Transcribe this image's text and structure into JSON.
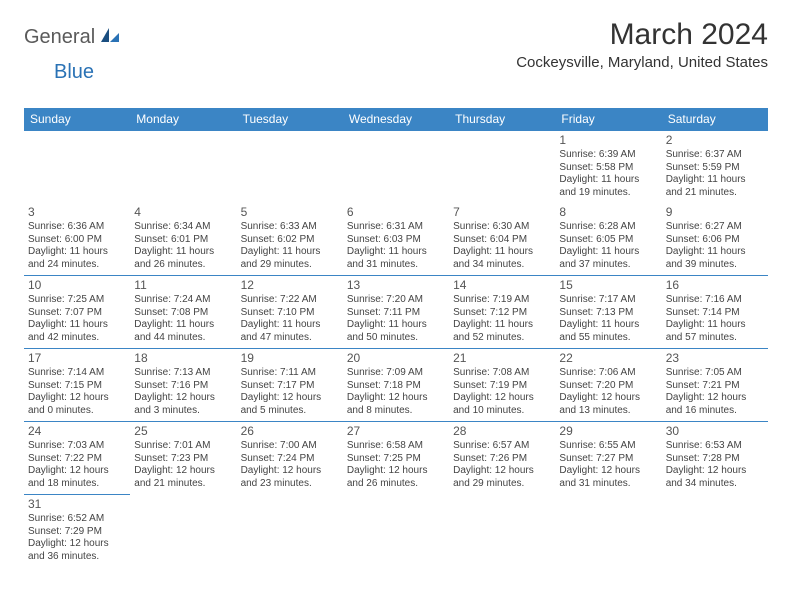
{
  "logo": {
    "text1": "General",
    "text2": "Blue"
  },
  "title": "March 2024",
  "location": "Cockeysville, Maryland, United States",
  "header_bg": "#3b85c5",
  "day_headers": [
    "Sunday",
    "Monday",
    "Tuesday",
    "Wednesday",
    "Thursday",
    "Friday",
    "Saturday"
  ],
  "weeks": [
    [
      null,
      null,
      null,
      null,
      null,
      {
        "n": "1",
        "sr": "Sunrise: 6:39 AM",
        "ss": "Sunset: 5:58 PM",
        "d1": "Daylight: 11 hours",
        "d2": "and 19 minutes."
      },
      {
        "n": "2",
        "sr": "Sunrise: 6:37 AM",
        "ss": "Sunset: 5:59 PM",
        "d1": "Daylight: 11 hours",
        "d2": "and 21 minutes."
      }
    ],
    [
      {
        "n": "3",
        "sr": "Sunrise: 6:36 AM",
        "ss": "Sunset: 6:00 PM",
        "d1": "Daylight: 11 hours",
        "d2": "and 24 minutes."
      },
      {
        "n": "4",
        "sr": "Sunrise: 6:34 AM",
        "ss": "Sunset: 6:01 PM",
        "d1": "Daylight: 11 hours",
        "d2": "and 26 minutes."
      },
      {
        "n": "5",
        "sr": "Sunrise: 6:33 AM",
        "ss": "Sunset: 6:02 PM",
        "d1": "Daylight: 11 hours",
        "d2": "and 29 minutes."
      },
      {
        "n": "6",
        "sr": "Sunrise: 6:31 AM",
        "ss": "Sunset: 6:03 PM",
        "d1": "Daylight: 11 hours",
        "d2": "and 31 minutes."
      },
      {
        "n": "7",
        "sr": "Sunrise: 6:30 AM",
        "ss": "Sunset: 6:04 PM",
        "d1": "Daylight: 11 hours",
        "d2": "and 34 minutes."
      },
      {
        "n": "8",
        "sr": "Sunrise: 6:28 AM",
        "ss": "Sunset: 6:05 PM",
        "d1": "Daylight: 11 hours",
        "d2": "and 37 minutes."
      },
      {
        "n": "9",
        "sr": "Sunrise: 6:27 AM",
        "ss": "Sunset: 6:06 PM",
        "d1": "Daylight: 11 hours",
        "d2": "and 39 minutes."
      }
    ],
    [
      {
        "n": "10",
        "sr": "Sunrise: 7:25 AM",
        "ss": "Sunset: 7:07 PM",
        "d1": "Daylight: 11 hours",
        "d2": "and 42 minutes."
      },
      {
        "n": "11",
        "sr": "Sunrise: 7:24 AM",
        "ss": "Sunset: 7:08 PM",
        "d1": "Daylight: 11 hours",
        "d2": "and 44 minutes."
      },
      {
        "n": "12",
        "sr": "Sunrise: 7:22 AM",
        "ss": "Sunset: 7:10 PM",
        "d1": "Daylight: 11 hours",
        "d2": "and 47 minutes."
      },
      {
        "n": "13",
        "sr": "Sunrise: 7:20 AM",
        "ss": "Sunset: 7:11 PM",
        "d1": "Daylight: 11 hours",
        "d2": "and 50 minutes."
      },
      {
        "n": "14",
        "sr": "Sunrise: 7:19 AM",
        "ss": "Sunset: 7:12 PM",
        "d1": "Daylight: 11 hours",
        "d2": "and 52 minutes."
      },
      {
        "n": "15",
        "sr": "Sunrise: 7:17 AM",
        "ss": "Sunset: 7:13 PM",
        "d1": "Daylight: 11 hours",
        "d2": "and 55 minutes."
      },
      {
        "n": "16",
        "sr": "Sunrise: 7:16 AM",
        "ss": "Sunset: 7:14 PM",
        "d1": "Daylight: 11 hours",
        "d2": "and 57 minutes."
      }
    ],
    [
      {
        "n": "17",
        "sr": "Sunrise: 7:14 AM",
        "ss": "Sunset: 7:15 PM",
        "d1": "Daylight: 12 hours",
        "d2": "and 0 minutes."
      },
      {
        "n": "18",
        "sr": "Sunrise: 7:13 AM",
        "ss": "Sunset: 7:16 PM",
        "d1": "Daylight: 12 hours",
        "d2": "and 3 minutes."
      },
      {
        "n": "19",
        "sr": "Sunrise: 7:11 AM",
        "ss": "Sunset: 7:17 PM",
        "d1": "Daylight: 12 hours",
        "d2": "and 5 minutes."
      },
      {
        "n": "20",
        "sr": "Sunrise: 7:09 AM",
        "ss": "Sunset: 7:18 PM",
        "d1": "Daylight: 12 hours",
        "d2": "and 8 minutes."
      },
      {
        "n": "21",
        "sr": "Sunrise: 7:08 AM",
        "ss": "Sunset: 7:19 PM",
        "d1": "Daylight: 12 hours",
        "d2": "and 10 minutes."
      },
      {
        "n": "22",
        "sr": "Sunrise: 7:06 AM",
        "ss": "Sunset: 7:20 PM",
        "d1": "Daylight: 12 hours",
        "d2": "and 13 minutes."
      },
      {
        "n": "23",
        "sr": "Sunrise: 7:05 AM",
        "ss": "Sunset: 7:21 PM",
        "d1": "Daylight: 12 hours",
        "d2": "and 16 minutes."
      }
    ],
    [
      {
        "n": "24",
        "sr": "Sunrise: 7:03 AM",
        "ss": "Sunset: 7:22 PM",
        "d1": "Daylight: 12 hours",
        "d2": "and 18 minutes."
      },
      {
        "n": "25",
        "sr": "Sunrise: 7:01 AM",
        "ss": "Sunset: 7:23 PM",
        "d1": "Daylight: 12 hours",
        "d2": "and 21 minutes."
      },
      {
        "n": "26",
        "sr": "Sunrise: 7:00 AM",
        "ss": "Sunset: 7:24 PM",
        "d1": "Daylight: 12 hours",
        "d2": "and 23 minutes."
      },
      {
        "n": "27",
        "sr": "Sunrise: 6:58 AM",
        "ss": "Sunset: 7:25 PM",
        "d1": "Daylight: 12 hours",
        "d2": "and 26 minutes."
      },
      {
        "n": "28",
        "sr": "Sunrise: 6:57 AM",
        "ss": "Sunset: 7:26 PM",
        "d1": "Daylight: 12 hours",
        "d2": "and 29 minutes."
      },
      {
        "n": "29",
        "sr": "Sunrise: 6:55 AM",
        "ss": "Sunset: 7:27 PM",
        "d1": "Daylight: 12 hours",
        "d2": "and 31 minutes."
      },
      {
        "n": "30",
        "sr": "Sunrise: 6:53 AM",
        "ss": "Sunset: 7:28 PM",
        "d1": "Daylight: 12 hours",
        "d2": "and 34 minutes."
      }
    ],
    [
      {
        "n": "31",
        "sr": "Sunrise: 6:52 AM",
        "ss": "Sunset: 7:29 PM",
        "d1": "Daylight: 12 hours",
        "d2": "and 36 minutes."
      },
      null,
      null,
      null,
      null,
      null,
      null
    ]
  ]
}
